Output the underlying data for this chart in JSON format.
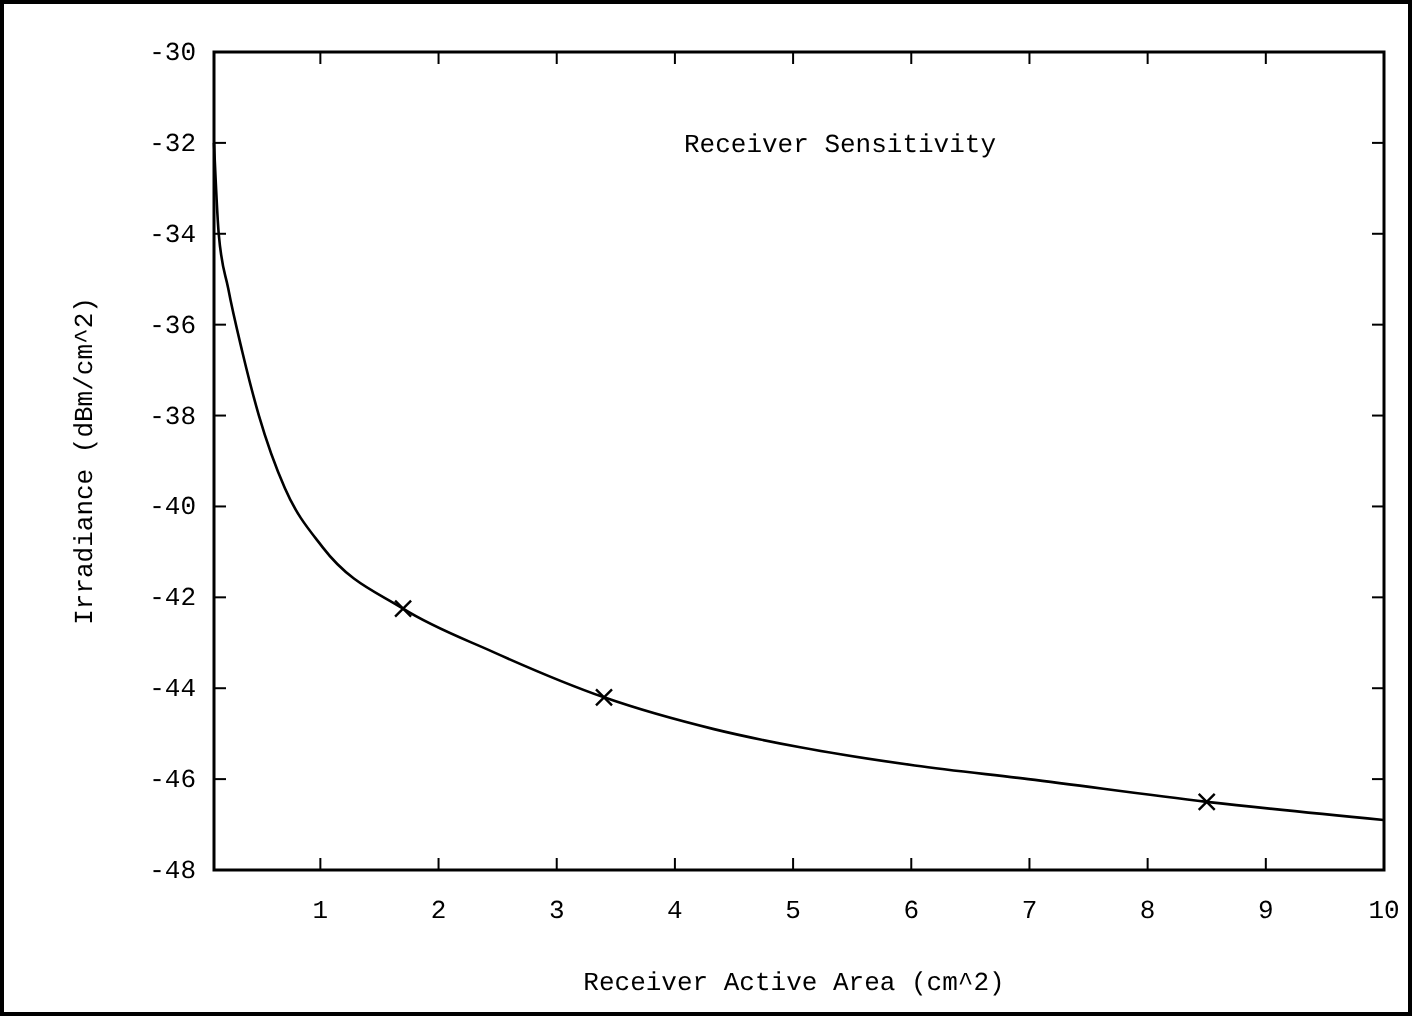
{
  "chart_data": {
    "type": "line",
    "title": "Receiver Sensitivity",
    "xlabel": "Receiver Active Area (cm^2)",
    "ylabel": "Irradiance (dBm/cm^2)",
    "xlim": [
      0.1,
      10
    ],
    "ylim": [
      -48,
      -30
    ],
    "xticks": [
      1,
      2,
      3,
      4,
      5,
      6,
      7,
      8,
      9,
      10
    ],
    "yticks": [
      -48,
      -46,
      -44,
      -42,
      -40,
      -38,
      -36,
      -34,
      -32,
      -30
    ],
    "grid": false,
    "series": [
      {
        "color": "#000000",
        "marker": "none",
        "x": [
          0.1,
          0.14,
          0.22,
          0.34,
          0.48,
          0.7,
          1.02,
          1.7,
          2.46,
          3.4,
          4.33,
          5.06,
          6.03,
          6.99,
          8.5,
          10
        ],
        "values": [
          -32,
          -34,
          -35.2,
          -36.6,
          -38,
          -39.6,
          -40.9,
          -42.25,
          -43.2,
          -44.2,
          -44.9,
          -45.3,
          -45.7,
          -46,
          -46.5,
          -46.9
        ]
      },
      {
        "type": "scatter",
        "color": "#000000",
        "marker": "cross",
        "x": [
          1.7,
          3.4,
          8.5
        ],
        "values": [
          -42.25,
          -44.2,
          -46.5
        ]
      }
    ]
  }
}
